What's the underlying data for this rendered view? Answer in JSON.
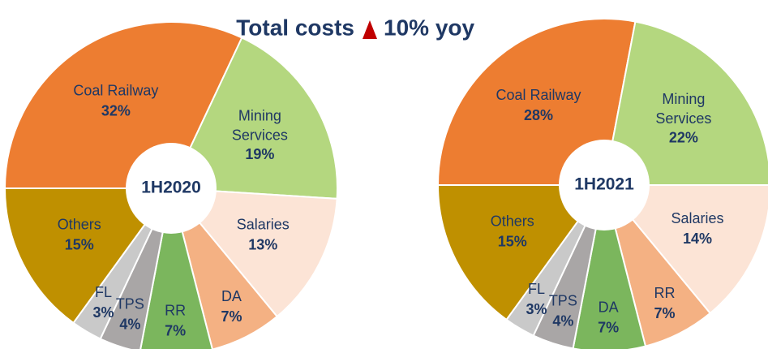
{
  "title": "Total costs",
  "change": "10% yoy",
  "chart_data": [
    {
      "type": "pie",
      "center_label": "1H2020",
      "categories": [
        "Coal Railway",
        "Mining Services",
        "Salaries",
        "DA",
        "RR",
        "TPS",
        "FL",
        "Others"
      ],
      "values": [
        32,
        19,
        13,
        7,
        7,
        4,
        3,
        15
      ],
      "value_labels": [
        "32%",
        "19%",
        "13%",
        "7%",
        "7%",
        "4%",
        "3%",
        "15%"
      ],
      "colors": [
        "#ed7d31",
        "#b4d77f",
        "#fce4d6",
        "#f4b183",
        "#7bb65d",
        "#a9a6a6",
        "#c9c9c9",
        "#bf9000"
      ]
    },
    {
      "type": "pie",
      "center_label": "1H2021",
      "categories": [
        "Coal Railway",
        "Mining Services",
        "Salaries",
        "RR",
        "DA",
        "TPS",
        "FL",
        "Others"
      ],
      "values": [
        28,
        22,
        14,
        7,
        7,
        4,
        3,
        15
      ],
      "value_labels": [
        "28%",
        "22%",
        "14%",
        "7%",
        "7%",
        "4%",
        "3%",
        "15%"
      ],
      "colors": [
        "#ed7d31",
        "#b4d77f",
        "#fce4d6",
        "#f4b183",
        "#7bb65d",
        "#a9a6a6",
        "#c9c9c9",
        "#bf9000"
      ]
    }
  ]
}
